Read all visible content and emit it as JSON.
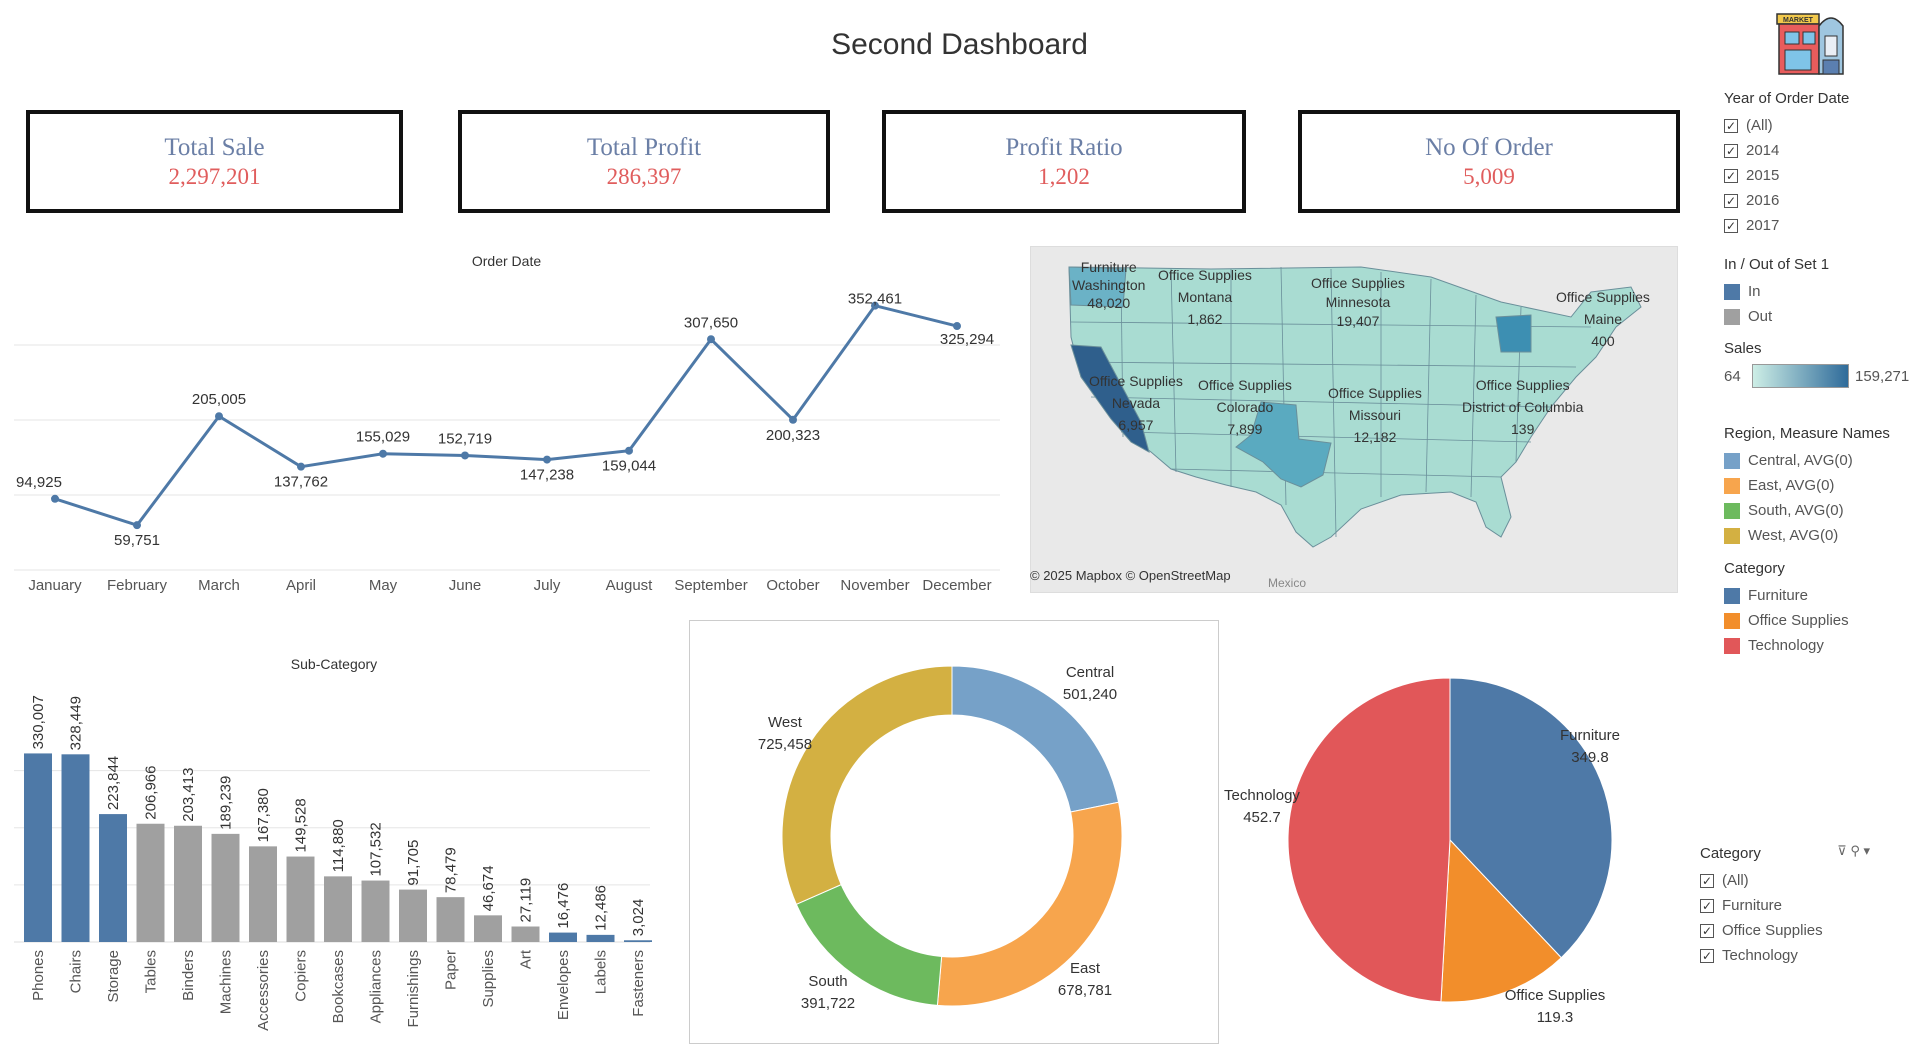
{
  "title": "Second Dashboard",
  "kpis": [
    {
      "label": "Total Sale",
      "value": "2,297,201"
    },
    {
      "label": "Total Profit",
      "value": "286,397"
    },
    {
      "label": "Profit Ratio",
      "value": "1,202"
    },
    {
      "label": "No Of Order",
      "value": "5,009"
    }
  ],
  "map": {
    "attribution": "© 2025 Mapbox  © OpenStreetMap",
    "country_label": "Mexico",
    "labels": [
      {
        "category": "Furniture",
        "state": "Washington",
        "value": "48,020"
      },
      {
        "category": "Office Supplies",
        "state": "Montana",
        "value": "1,862"
      },
      {
        "category": "Office Supplies",
        "state": "Minnesota",
        "value": "19,407"
      },
      {
        "category": "Office Supplies",
        "state": "Maine",
        "value": "400"
      },
      {
        "category": "Office Supplies",
        "state": "Nevada",
        "value": "6,957"
      },
      {
        "category": "Office Supplies",
        "state": "Colorado",
        "value": "7,899"
      },
      {
        "category": "Office Supplies",
        "state": "Missouri",
        "value": "12,182"
      },
      {
        "category": "Office Supplies",
        "state": "District of Columbia",
        "value": "139"
      }
    ]
  },
  "sidebar": {
    "year_filter": {
      "title": "Year of Order Date",
      "options": [
        "(All)",
        "2014",
        "2015",
        "2016",
        "2017"
      ]
    },
    "set_legend": {
      "title": "In / Out of Set 1",
      "items": [
        {
          "label": "In",
          "color": "#4e79a7"
        },
        {
          "label": "Out",
          "color": "#a0a0a0"
        }
      ]
    },
    "sales_legend": {
      "title": "Sales",
      "min": "64",
      "max": "159,271"
    },
    "region_legend": {
      "title": "Region, Measure Names",
      "items": [
        {
          "label": "Central, AVG(0)",
          "color": "#76a1c8"
        },
        {
          "label": "East, AVG(0)",
          "color": "#f7a54d"
        },
        {
          "label": "South, AVG(0)",
          "color": "#6dba5e"
        },
        {
          "label": "West, AVG(0)",
          "color": "#d3b042"
        }
      ]
    },
    "category_legend": {
      "title": "Category",
      "items": [
        {
          "label": "Furniture",
          "color": "#4e79a7"
        },
        {
          "label": "Office Supplies",
          "color": "#f28e2b"
        },
        {
          "label": "Technology",
          "color": "#e15759"
        }
      ]
    },
    "category_filter": {
      "title": "Category",
      "options": [
        "(All)",
        "Furniture",
        "Office Supplies",
        "Technology"
      ]
    }
  },
  "chart_data": [
    {
      "type": "line",
      "title": "Order Date",
      "categories": [
        "January",
        "February",
        "March",
        "April",
        "May",
        "June",
        "July",
        "August",
        "September",
        "October",
        "November",
        "December"
      ],
      "values": [
        94925,
        59751,
        205005,
        137762,
        155029,
        152719,
        147238,
        159044,
        307650,
        200323,
        352461,
        325294
      ],
      "labels": [
        "94,925",
        "59,751",
        "205,005",
        "137,762",
        "155,029",
        "152,719",
        "147,238",
        "159,044",
        "307,650",
        "200,323",
        "352,461",
        "325,294"
      ],
      "ylim": [
        0,
        400000
      ],
      "color": "#4e79a7"
    },
    {
      "type": "bar",
      "title": "Sub-Category",
      "categories": [
        "Phones",
        "Chairs",
        "Storage",
        "Tables",
        "Binders",
        "Machines",
        "Accessories",
        "Copiers",
        "Bookcases",
        "Appliances",
        "Furnishings",
        "Paper",
        "Supplies",
        "Art",
        "Envelopes",
        "Labels",
        "Fasteners"
      ],
      "values": [
        330007,
        328449,
        223844,
        206966,
        203413,
        189239,
        167380,
        149528,
        114880,
        107532,
        91705,
        78479,
        46674,
        27119,
        16476,
        12486,
        3024
      ],
      "labels": [
        "330,007",
        "328,449",
        "223,844",
        "206,966",
        "203,413",
        "189,239",
        "167,380",
        "149,528",
        "114,880",
        "107,532",
        "91,705",
        "78,479",
        "46,674",
        "27,119",
        "16,476",
        "12,486",
        "3,024"
      ],
      "in_set": [
        true,
        true,
        true,
        false,
        false,
        false,
        false,
        false,
        false,
        false,
        false,
        false,
        false,
        false,
        true,
        true,
        true
      ],
      "ylim": [
        0,
        350000
      ]
    },
    {
      "type": "pie",
      "subtype": "donut",
      "slices": [
        {
          "name": "Central",
          "value": 501240,
          "label": "501,240",
          "color": "#76a1c8"
        },
        {
          "name": "East",
          "value": 678781,
          "label": "678,781",
          "color": "#f7a54d"
        },
        {
          "name": "South",
          "value": 391722,
          "label": "391,722",
          "color": "#6dba5e"
        },
        {
          "name": "West",
          "value": 725458,
          "label": "725,458",
          "color": "#d3b042"
        }
      ]
    },
    {
      "type": "pie",
      "slices": [
        {
          "name": "Furniture",
          "value": 349.8,
          "label": "349.8",
          "color": "#4e79a7"
        },
        {
          "name": "Office Supplies",
          "value": 119.3,
          "label": "119.3",
          "color": "#f28e2b"
        },
        {
          "name": "Technology",
          "value": 452.7,
          "label": "452.7",
          "color": "#e15759"
        }
      ]
    }
  ]
}
